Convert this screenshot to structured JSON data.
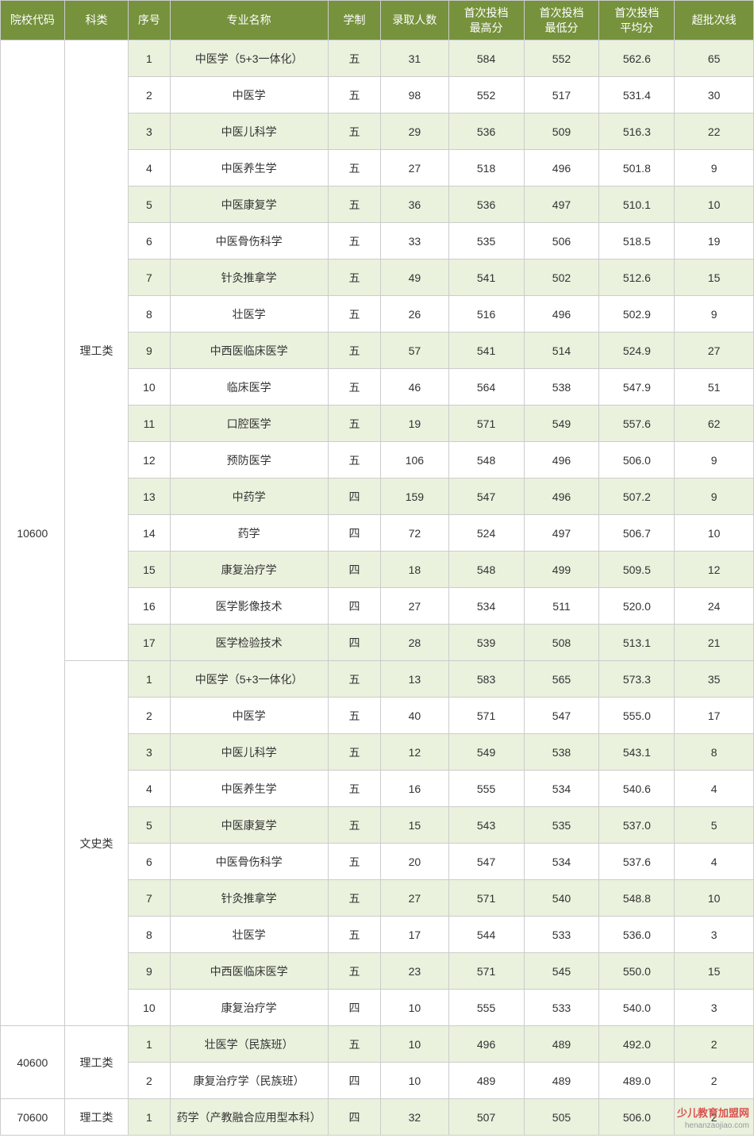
{
  "columns": [
    "院校代码",
    "科类",
    "序号",
    "专业名称",
    "学制",
    "录取人数",
    "首次投档最高分",
    "首次投档最低分",
    "首次投档平均分",
    "超批次线"
  ],
  "colClasses": [
    "col-code",
    "col-category",
    "col-seq",
    "col-major",
    "col-duration",
    "col-count",
    "col-high",
    "col-low",
    "col-avg",
    "col-over"
  ],
  "groups": [
    {
      "code": "10600",
      "categories": [
        {
          "name": "理工类",
          "rows": [
            [
              "1",
              "中医学（5+3一体化）",
              "五",
              "31",
              "584",
              "552",
              "562.6",
              "65"
            ],
            [
              "2",
              "中医学",
              "五",
              "98",
              "552",
              "517",
              "531.4",
              "30"
            ],
            [
              "3",
              "中医儿科学",
              "五",
              "29",
              "536",
              "509",
              "516.3",
              "22"
            ],
            [
              "4",
              "中医养生学",
              "五",
              "27",
              "518",
              "496",
              "501.8",
              "9"
            ],
            [
              "5",
              "中医康复学",
              "五",
              "36",
              "536",
              "497",
              "510.1",
              "10"
            ],
            [
              "6",
              "中医骨伤科学",
              "五",
              "33",
              "535",
              "506",
              "518.5",
              "19"
            ],
            [
              "7",
              "针灸推拿学",
              "五",
              "49",
              "541",
              "502",
              "512.6",
              "15"
            ],
            [
              "8",
              "壮医学",
              "五",
              "26",
              "516",
              "496",
              "502.9",
              "9"
            ],
            [
              "9",
              "中西医临床医学",
              "五",
              "57",
              "541",
              "514",
              "524.9",
              "27"
            ],
            [
              "10",
              "临床医学",
              "五",
              "46",
              "564",
              "538",
              "547.9",
              "51"
            ],
            [
              "11",
              "口腔医学",
              "五",
              "19",
              "571",
              "549",
              "557.6",
              "62"
            ],
            [
              "12",
              "预防医学",
              "五",
              "106",
              "548",
              "496",
              "506.0",
              "9"
            ],
            [
              "13",
              "中药学",
              "四",
              "159",
              "547",
              "496",
              "507.2",
              "9"
            ],
            [
              "14",
              "药学",
              "四",
              "72",
              "524",
              "497",
              "506.7",
              "10"
            ],
            [
              "15",
              "康复治疗学",
              "四",
              "18",
              "548",
              "499",
              "509.5",
              "12"
            ],
            [
              "16",
              "医学影像技术",
              "四",
              "27",
              "534",
              "511",
              "520.0",
              "24"
            ],
            [
              "17",
              "医学检验技术",
              "四",
              "28",
              "539",
              "508",
              "513.1",
              "21"
            ]
          ]
        },
        {
          "name": "文史类",
          "rows": [
            [
              "1",
              "中医学（5+3一体化）",
              "五",
              "13",
              "583",
              "565",
              "573.3",
              "35"
            ],
            [
              "2",
              "中医学",
              "五",
              "40",
              "571",
              "547",
              "555.0",
              "17"
            ],
            [
              "3",
              "中医儿科学",
              "五",
              "12",
              "549",
              "538",
              "543.1",
              "8"
            ],
            [
              "4",
              "中医养生学",
              "五",
              "16",
              "555",
              "534",
              "540.6",
              "4"
            ],
            [
              "5",
              "中医康复学",
              "五",
              "15",
              "543",
              "535",
              "537.0",
              "5"
            ],
            [
              "6",
              "中医骨伤科学",
              "五",
              "20",
              "547",
              "534",
              "537.6",
              "4"
            ],
            [
              "7",
              "针灸推拿学",
              "五",
              "27",
              "571",
              "540",
              "548.8",
              "10"
            ],
            [
              "8",
              "壮医学",
              "五",
              "17",
              "544",
              "533",
              "536.0",
              "3"
            ],
            [
              "9",
              "中西医临床医学",
              "五",
              "23",
              "571",
              "545",
              "550.0",
              "15"
            ],
            [
              "10",
              "康复治疗学",
              "四",
              "10",
              "555",
              "533",
              "540.0",
              "3"
            ]
          ]
        }
      ]
    },
    {
      "code": "40600",
      "categories": [
        {
          "name": "理工类",
          "rows": [
            [
              "1",
              "壮医学（民族班）",
              "五",
              "10",
              "496",
              "489",
              "492.0",
              "2"
            ],
            [
              "2",
              "康复治疗学（民族班）",
              "四",
              "10",
              "489",
              "489",
              "489.0",
              "2"
            ]
          ]
        }
      ]
    },
    {
      "code": "70600",
      "categories": [
        {
          "name": "理工类",
          "rows": [
            [
              "1",
              "药学（产教融合应用型本科）",
              "四",
              "32",
              "507",
              "505",
              "506.0",
              "2"
            ]
          ]
        }
      ]
    }
  ],
  "watermark": {
    "title": "少儿教育加盟网",
    "url": "henanzaojiao.com"
  }
}
